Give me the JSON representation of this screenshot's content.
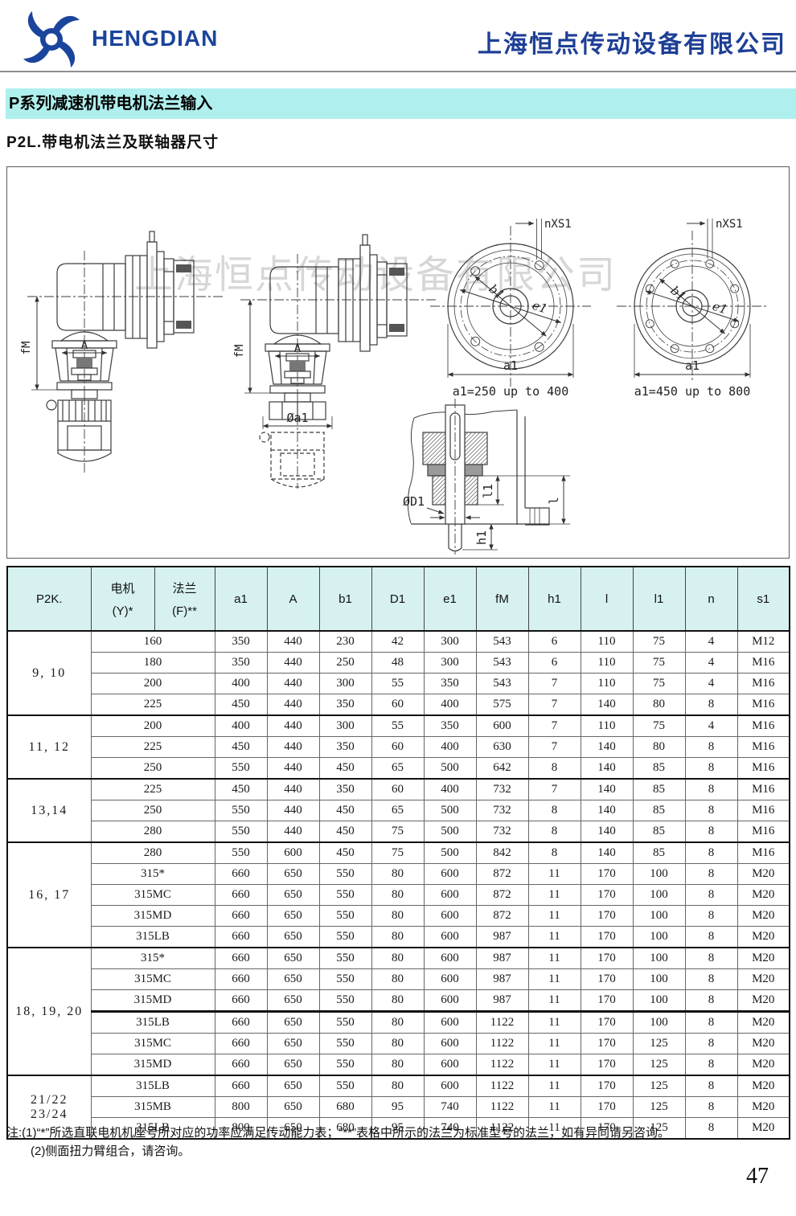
{
  "header": {
    "brand": "HENGDIAN",
    "company": "上海恒点传动设备有限公司",
    "brand_color": "#1b449c"
  },
  "titles": {
    "series": "P系列减速机带电机法兰输入",
    "subtitle": "P2L.带电机法兰及联轴器尺寸",
    "bar_color": "#aff0ee"
  },
  "drawing": {
    "watermark": "上海恒点传动设备有限公司",
    "labels": {
      "fm": "fM",
      "a": "A",
      "dia_a1": "Øa1",
      "nxs1": "nXS1",
      "b1": "b1",
      "e1": "e1",
      "a1": "a1",
      "dia_d1": "ØD1",
      "l1": "l1",
      "l": "l",
      "h1": "h1"
    },
    "captions": {
      "flange_small": "a1=250 up to 400",
      "flange_large": "a1=450 up to 800"
    }
  },
  "table": {
    "headers": {
      "col_model": "P2K.",
      "motor_line1": "电机",
      "motor_line2": "(Y)*",
      "flange_line1": "法兰",
      "flange_line2": "(F)**",
      "dims": [
        "a1",
        "A",
        "b1",
        "D1",
        "e1",
        "fM",
        "h1",
        "l",
        "l1",
        "n",
        "s1"
      ]
    },
    "groups": [
      {
        "label": "9, 10",
        "rows": [
          {
            "motor": "160",
            "values": [
              "350",
              "440",
              "230",
              "42",
              "300",
              "543",
              "6",
              "110",
              "75",
              "4",
              "M12"
            ]
          },
          {
            "motor": "180",
            "values": [
              "350",
              "440",
              "250",
              "48",
              "300",
              "543",
              "6",
              "110",
              "75",
              "4",
              "M16"
            ]
          },
          {
            "motor": "200",
            "values": [
              "400",
              "440",
              "300",
              "55",
              "350",
              "543",
              "7",
              "110",
              "75",
              "4",
              "M16"
            ]
          },
          {
            "motor": "225",
            "values": [
              "450",
              "440",
              "350",
              "60",
              "400",
              "575",
              "7",
              "140",
              "80",
              "8",
              "M16"
            ]
          }
        ]
      },
      {
        "label": "11, 12",
        "rows": [
          {
            "motor": "200",
            "values": [
              "400",
              "440",
              "300",
              "55",
              "350",
              "600",
              "7",
              "110",
              "75",
              "4",
              "M16"
            ]
          },
          {
            "motor": "225",
            "values": [
              "450",
              "440",
              "350",
              "60",
              "400",
              "630",
              "7",
              "140",
              "80",
              "8",
              "M16"
            ]
          },
          {
            "motor": "250",
            "values": [
              "550",
              "440",
              "450",
              "65",
              "500",
              "642",
              "8",
              "140",
              "85",
              "8",
              "M16"
            ]
          }
        ]
      },
      {
        "label": "13,14",
        "rows": [
          {
            "motor": "225",
            "values": [
              "450",
              "440",
              "350",
              "60",
              "400",
              "732",
              "7",
              "140",
              "85",
              "8",
              "M16"
            ]
          },
          {
            "motor": "250",
            "values": [
              "550",
              "440",
              "450",
              "65",
              "500",
              "732",
              "8",
              "140",
              "85",
              "8",
              "M16"
            ]
          },
          {
            "motor": "280",
            "values": [
              "550",
              "440",
              "450",
              "75",
              "500",
              "732",
              "8",
              "140",
              "85",
              "8",
              "M16"
            ]
          }
        ]
      },
      {
        "label": "16, 17",
        "rows": [
          {
            "motor": "280",
            "values": [
              "550",
              "600",
              "450",
              "75",
              "500",
              "842",
              "8",
              "140",
              "85",
              "8",
              "M16"
            ]
          },
          {
            "motor": "315*",
            "values": [
              "660",
              "650",
              "550",
              "80",
              "600",
              "872",
              "11",
              "170",
              "100",
              "8",
              "M20"
            ]
          },
          {
            "motor": "315MC",
            "values": [
              "660",
              "650",
              "550",
              "80",
              "600",
              "872",
              "11",
              "170",
              "100",
              "8",
              "M20"
            ]
          },
          {
            "motor": "315MD",
            "values": [
              "660",
              "650",
              "550",
              "80",
              "600",
              "872",
              "11",
              "170",
              "100",
              "8",
              "M20"
            ]
          },
          {
            "motor": "315LB",
            "values": [
              "660",
              "650",
              "550",
              "80",
              "600",
              "987",
              "11",
              "170",
              "100",
              "8",
              "M20"
            ]
          }
        ]
      },
      {
        "label": "18, 19, 20",
        "rows": [
          {
            "motor": "315*",
            "values": [
              "660",
              "650",
              "550",
              "80",
              "600",
              "987",
              "11",
              "170",
              "100",
              "8",
              "M20"
            ]
          },
          {
            "motor": "315MC",
            "values": [
              "660",
              "650",
              "550",
              "80",
              "600",
              "987",
              "11",
              "170",
              "100",
              "8",
              "M20"
            ]
          },
          {
            "motor": "315MD",
            "values": [
              "660",
              "650",
              "550",
              "80",
              "600",
              "987",
              "11",
              "170",
              "100",
              "8",
              "M20"
            ]
          },
          {
            "motor": "315LB",
            "values": [
              "660",
              "650",
              "550",
              "80",
              "600",
              "1122",
              "11",
              "170",
              "100",
              "8",
              "M20"
            ],
            "thick_top": true
          },
          {
            "motor": "315MC",
            "values": [
              "660",
              "650",
              "550",
              "80",
              "600",
              "1122",
              "11",
              "170",
              "125",
              "8",
              "M20"
            ]
          },
          {
            "motor": "315MD",
            "values": [
              "660",
              "650",
              "550",
              "80",
              "600",
              "1122",
              "11",
              "170",
              "125",
              "8",
              "M20"
            ]
          }
        ]
      },
      {
        "label": "21/22\n23/24",
        "rows": [
          {
            "motor": "315LB",
            "values": [
              "660",
              "650",
              "550",
              "80",
              "600",
              "1122",
              "11",
              "170",
              "125",
              "8",
              "M20"
            ]
          },
          {
            "motor": "315MB",
            "values": [
              "800",
              "650",
              "680",
              "95",
              "740",
              "1122",
              "11",
              "170",
              "125",
              "8",
              "M20"
            ]
          },
          {
            "motor": "315LB",
            "values": [
              "800",
              "650",
              "680",
              "95",
              "740",
              "1122",
              "11",
              "170",
              "125",
              "8",
              "M20"
            ]
          }
        ]
      }
    ]
  },
  "notes": [
    "注:(1)“*”所选直联电机机座号所对应的功率应满足传动能力表；“**”表格中所示的法兰为标准型号的法兰，如有异同请另咨询。",
    "(2)侧面扭力臂组合，请咨询。"
  ],
  "page_number": "47"
}
